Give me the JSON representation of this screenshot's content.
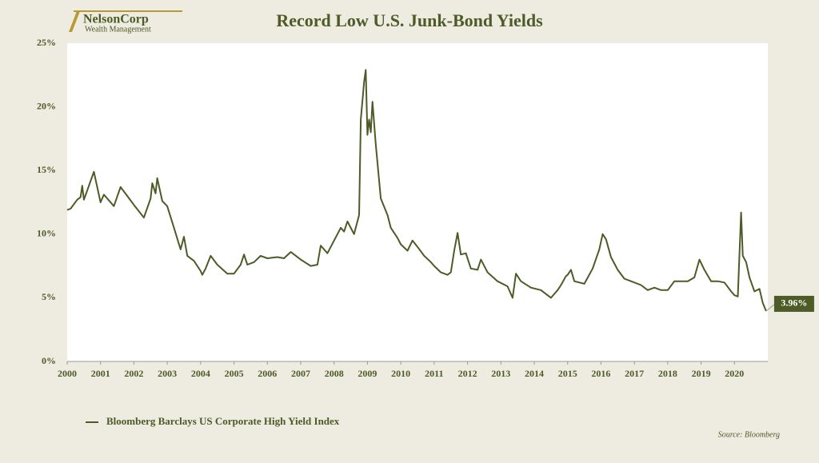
{
  "brand": {
    "name": "NelsonCorp",
    "tagline": "Wealth Management"
  },
  "source": "Source: Bloomberg",
  "chart_data": {
    "type": "line",
    "title": "Record Low U.S. Junk-Bond Yields",
    "x": [
      2000.0,
      2000.1,
      2000.3,
      2000.4,
      2000.45,
      2000.5,
      2000.8,
      2001.0,
      2001.1,
      2001.4,
      2001.6,
      2001.8,
      2002.0,
      2002.3,
      2002.5,
      2002.55,
      2002.65,
      2002.7,
      2002.85,
      2003.0,
      2003.2,
      2003.4,
      2003.5,
      2003.6,
      2003.8,
      2004.0,
      2004.05,
      2004.15,
      2004.3,
      2004.5,
      2004.8,
      2005.0,
      2005.2,
      2005.3,
      2005.4,
      2005.6,
      2005.8,
      2006.0,
      2006.3,
      2006.5,
      2006.7,
      2007.0,
      2007.3,
      2007.5,
      2007.6,
      2007.8,
      2008.0,
      2008.2,
      2008.3,
      2008.4,
      2008.6,
      2008.75,
      2008.8,
      2008.9,
      2008.95,
      2009.0,
      2009.05,
      2009.1,
      2009.15,
      2009.25,
      2009.4,
      2009.6,
      2009.7,
      2009.9,
      2010.0,
      2010.2,
      2010.35,
      2010.5,
      2010.7,
      2010.9,
      2011.0,
      2011.2,
      2011.4,
      2011.5,
      2011.6,
      2011.7,
      2011.8,
      2011.95,
      2012.1,
      2012.3,
      2012.4,
      2012.6,
      2012.9,
      2013.2,
      2013.35,
      2013.45,
      2013.6,
      2013.9,
      2014.2,
      2014.5,
      2014.6,
      2014.7,
      2014.8,
      2014.95,
      2015.0,
      2015.1,
      2015.2,
      2015.5,
      2015.75,
      2015.95,
      2016.05,
      2016.15,
      2016.3,
      2016.5,
      2016.7,
      2016.9,
      2017.2,
      2017.4,
      2017.6,
      2017.8,
      2018.0,
      2018.2,
      2018.4,
      2018.6,
      2018.8,
      2018.95,
      2019.1,
      2019.3,
      2019.5,
      2019.7,
      2019.9,
      2020.0,
      2020.1,
      2020.2,
      2020.25,
      2020.35,
      2020.45,
      2020.6,
      2020.75,
      2020.85,
      2020.95
    ],
    "series": [
      {
        "name": "Bloomberg Barclays US Corporate High Yield Index",
        "color": "#4d5b26",
        "values": [
          11.9,
          12.0,
          12.7,
          12.9,
          13.8,
          12.7,
          14.9,
          12.5,
          13.1,
          12.2,
          13.7,
          13.0,
          12.3,
          11.3,
          12.8,
          14.0,
          13.2,
          14.4,
          12.6,
          12.2,
          10.5,
          8.8,
          9.8,
          8.3,
          7.9,
          7.1,
          6.8,
          7.3,
          8.3,
          7.6,
          6.9,
          6.9,
          7.6,
          8.4,
          7.6,
          7.8,
          8.3,
          8.1,
          8.2,
          8.1,
          8.6,
          8.0,
          7.5,
          7.6,
          9.1,
          8.5,
          9.5,
          10.5,
          10.2,
          11.0,
          10.0,
          11.5,
          19.0,
          22.0,
          22.9,
          17.8,
          19.0,
          18.0,
          20.4,
          17.0,
          12.8,
          11.5,
          10.5,
          9.7,
          9.2,
          8.7,
          9.5,
          9.0,
          8.3,
          7.8,
          7.5,
          7.0,
          6.8,
          7.0,
          8.7,
          10.1,
          8.4,
          8.5,
          7.3,
          7.2,
          8.0,
          7.0,
          6.3,
          5.9,
          5.0,
          6.9,
          6.3,
          5.8,
          5.6,
          5.0,
          5.3,
          5.6,
          6.0,
          6.7,
          6.8,
          7.2,
          6.3,
          6.1,
          7.3,
          8.8,
          10.0,
          9.6,
          8.2,
          7.2,
          6.5,
          6.3,
          6.0,
          5.6,
          5.8,
          5.6,
          5.6,
          6.3,
          6.3,
          6.3,
          6.6,
          8.0,
          7.2,
          6.3,
          6.3,
          6.2,
          5.5,
          5.2,
          5.1,
          11.7,
          8.3,
          7.8,
          6.6,
          5.5,
          5.7,
          4.6,
          3.96
        ]
      }
    ],
    "annotation": "3.96%",
    "xlim": [
      2000,
      2021
    ],
    "xticks": [
      2000,
      2001,
      2002,
      2003,
      2004,
      2005,
      2006,
      2007,
      2008,
      2009,
      2010,
      2011,
      2012,
      2013,
      2014,
      2015,
      2016,
      2017,
      2018,
      2019,
      2020
    ],
    "ylim": [
      0,
      25
    ],
    "yticks": [
      {
        "value": 0,
        "label": "0%"
      },
      {
        "value": 5,
        "label": "5%"
      },
      {
        "value": 10,
        "label": "10%"
      },
      {
        "value": 15,
        "label": "15%"
      },
      {
        "value": 20,
        "label": "20%"
      },
      {
        "value": 25,
        "label": "25%"
      }
    ]
  }
}
